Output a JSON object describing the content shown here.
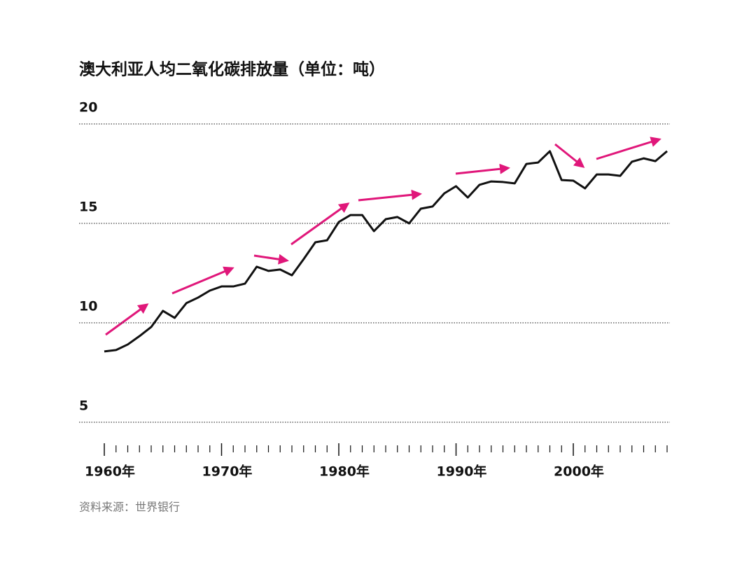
{
  "chart_data": {
    "type": "line",
    "title": "澳大利亚人均二氧化碳排放量（单位：吨）",
    "source": "资料来源：世界银行",
    "x": [
      1960,
      1961,
      1962,
      1963,
      1964,
      1965,
      1966,
      1967,
      1968,
      1969,
      1970,
      1971,
      1972,
      1973,
      1974,
      1975,
      1976,
      1977,
      1978,
      1979,
      1980,
      1981,
      1982,
      1983,
      1984,
      1985,
      1986,
      1987,
      1988,
      1989,
      1990,
      1991,
      1992,
      1993,
      1994,
      1995,
      1996,
      1997,
      1998,
      1999,
      2000,
      2001,
      2002,
      2003,
      2004,
      2005,
      2006,
      2007,
      2008
    ],
    "series": [
      {
        "name": "人均二氧化碳排放量",
        "color": "#111111",
        "values": [
          8.56,
          8.63,
          8.91,
          9.33,
          9.79,
          10.6,
          10.25,
          10.99,
          11.27,
          11.62,
          11.83,
          11.83,
          11.97,
          12.82,
          12.61,
          12.68,
          12.39,
          13.2,
          14.05,
          14.15,
          15.07,
          15.42,
          15.42,
          14.61,
          15.21,
          15.32,
          15.0,
          15.74,
          15.85,
          16.51,
          16.87,
          16.3,
          16.94,
          17.11,
          17.08,
          17.01,
          17.99,
          18.06,
          18.63,
          17.18,
          17.15,
          16.76,
          17.46,
          17.46,
          17.39,
          18.1,
          18.27,
          18.13,
          18.63
        ]
      }
    ],
    "xlim": [
      1960,
      2008
    ],
    "xticks": [
      {
        "value": 1960,
        "label": "1960年"
      },
      {
        "value": 1970,
        "label": "1970年"
      },
      {
        "value": 1980,
        "label": "1980年"
      },
      {
        "value": 1990,
        "label": "1990年"
      },
      {
        "value": 2000,
        "label": "2000年"
      }
    ],
    "xminor_ticks": [
      1961,
      1962,
      1963,
      1964,
      1965,
      1966,
      1967,
      1968,
      1969,
      1971,
      1972,
      1973,
      1974,
      1975,
      1976,
      1977,
      1978,
      1979,
      1981,
      1982,
      1983,
      1984,
      1985,
      1986,
      1987,
      1988,
      1989,
      1991,
      1992,
      1993,
      1994,
      1995,
      1996,
      1997,
      1998,
      1999,
      2001,
      2002,
      2003,
      2004,
      2005,
      2006,
      2007,
      2008
    ],
    "ylim": [
      5,
      20
    ],
    "yticks": [
      5,
      10,
      15,
      20
    ],
    "grid": true,
    "annotation_color": "#e0177a"
  }
}
